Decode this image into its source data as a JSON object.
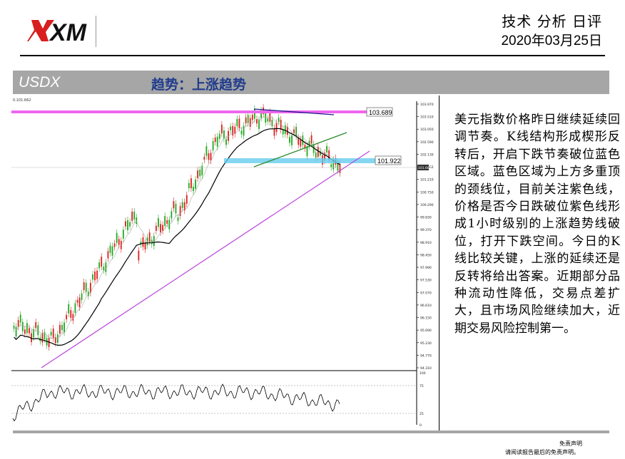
{
  "header": {
    "logo_text": "XM",
    "report_title": "技术 分析 日评",
    "report_date": "2020年03月25日"
  },
  "section": {
    "symbol": "USDX",
    "trend": "趋势：上涨趋势"
  },
  "chart": {
    "corner_label": "0.101.662",
    "price_labels": [
      {
        "name": "purple-resistance",
        "value": "103.689"
      },
      {
        "name": "blue-zone",
        "value": "101.922"
      },
      {
        "name": "current",
        "value": "101.662"
      }
    ],
    "y_ticks": [
      "103.970",
      "103.510",
      "103.050",
      "102.590",
      "102.130",
      "101.662",
      "101.210",
      "100.750",
      "100.290",
      "99.830",
      "99.370",
      "98.910",
      "98.450",
      "97.990",
      "97.530",
      "97.070",
      "96.610",
      "96.150",
      "95.690",
      "95.230",
      "94.770",
      "94.310"
    ],
    "indicator_ticks": [
      "100",
      "75",
      "25",
      "0"
    ]
  },
  "commentary": "美元指数价格昨日继续延续回调节奏。K线结构形成楔形反转后，开启下跌节奏破位蓝色区域。蓝色区域为上方多重顶的颈线位，目前关注紫色线，价格是否今日跌破位紫色线形成1小时级别的上涨趋势线破位，打开下跌空间。今日的K线比较关键，上涨的延续还是反转将给出答案。近期部分品种流动性降低，交易点差扩大，且市场风险继续加大，近期交易风险控制第一。",
  "footer": {
    "disclaimer_title": "免责声明",
    "disclaimer_text": "请阅读报告最后的免责声明。"
  },
  "colors": {
    "band": "#a6a6a6",
    "trend_text": "#1f3c8c",
    "bull_candle": "#22aa22",
    "bear_candle": "#dd2222",
    "resistance": "#ee66ee",
    "support_zone": "#66ccee",
    "trendline": "#bb44dd",
    "wedge_top": "#1a1a8c",
    "wedge_bottom": "#2a8a2a"
  }
}
